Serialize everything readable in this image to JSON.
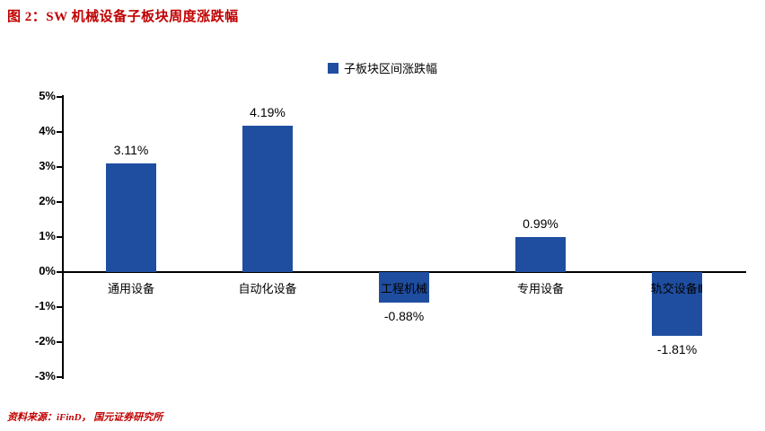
{
  "title": "图 2：SW 机械设备子板块周度涨跌幅",
  "source": "资料来源：iFinD，  国元证券研究所",
  "colors": {
    "bar": "#1F4EA1",
    "title": "#C00000",
    "source": "#C00000",
    "axis": "#000000"
  },
  "chart_data": {
    "type": "bar",
    "title": "图 2：SW 机械设备子板块周度涨跌幅",
    "legend": "子板块区间涨跌幅",
    "legend_position": "top-center",
    "categories": [
      "通用设备",
      "自动化设备",
      "工程机械",
      "专用设备",
      "轨交设备Ⅱ"
    ],
    "values": [
      3.11,
      4.19,
      -0.88,
      0.99,
      -1.81
    ],
    "value_labels": [
      "3.11%",
      "4.19%",
      "-0.88%",
      "0.99%",
      "-1.81%"
    ],
    "ylim": [
      -3,
      5
    ],
    "ytick_labels": [
      "5%",
      "4%",
      "3%",
      "2%",
      "1%",
      "0%",
      "-1%",
      "-2%",
      "-3%"
    ],
    "grid": false,
    "xlabel": "",
    "ylabel": ""
  }
}
